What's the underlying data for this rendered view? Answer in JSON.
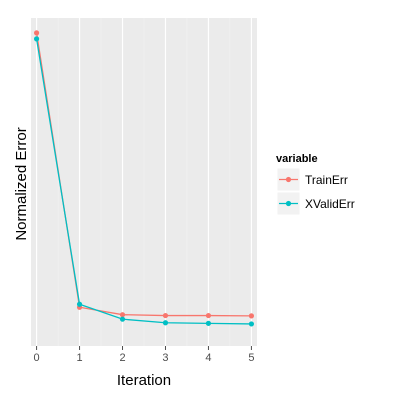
{
  "chart_data": {
    "type": "line",
    "xlabel": "Iteration",
    "ylabel": "Normalized Error",
    "x": [
      0,
      1,
      2,
      3,
      4,
      5
    ],
    "xlim": [
      -0.13,
      5.13
    ],
    "ylim": [
      -0.05,
      1.05
    ],
    "grid": true,
    "show_y_tick_labels": false,
    "legend": {
      "title": "variable",
      "placement": "right"
    },
    "series": [
      {
        "name": "TrainErr",
        "color": "#F8766D",
        "values": [
          1.0,
          0.08,
          0.055,
          0.052,
          0.052,
          0.051
        ]
      },
      {
        "name": "XValidErr",
        "color": "#00BFC4",
        "values": [
          0.98,
          0.09,
          0.04,
          0.028,
          0.026,
          0.024
        ]
      }
    ]
  }
}
